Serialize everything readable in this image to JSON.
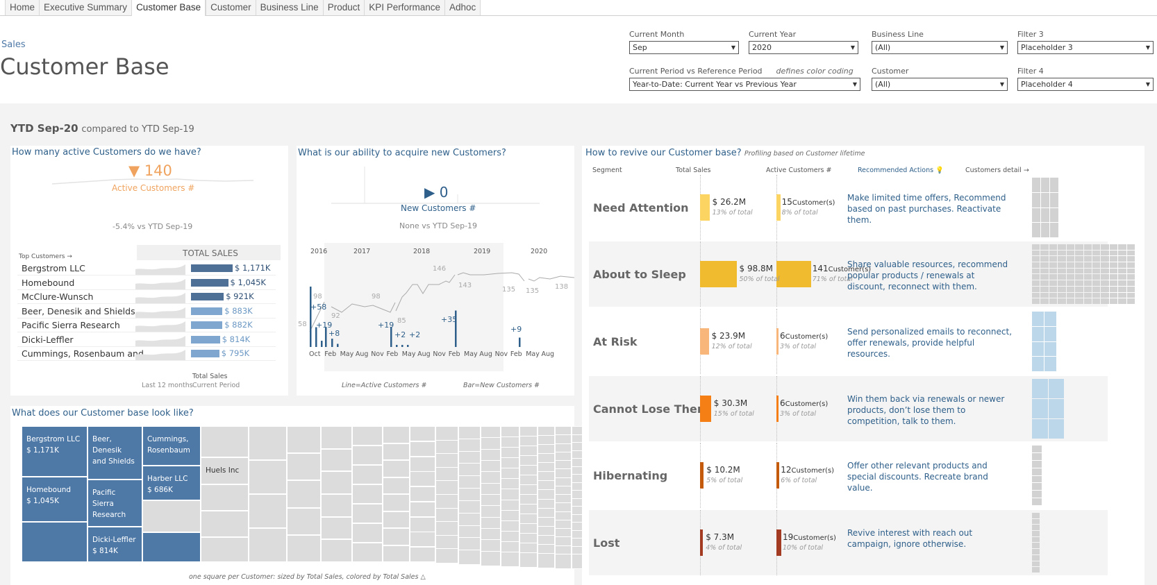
{
  "tabs": [
    "Home",
    "Executive Summary",
    "Customer Base",
    "Customer",
    "Business Line",
    "Product",
    "KPI Performance",
    "Adhoc"
  ],
  "active_tab": "Customer Base",
  "header": {
    "breadcrumb": "Sales",
    "title": "Customer Base"
  },
  "filters": {
    "current_month": {
      "label": "Current Month",
      "value": "Sep"
    },
    "current_year": {
      "label": "Current Year",
      "value": "2020"
    },
    "business_line": {
      "label": "Business Line",
      "value": "(All)"
    },
    "filter3": {
      "label": "Filter 3",
      "value": "Placeholder 3"
    },
    "period": {
      "label": "Current Period vs Reference Period",
      "note": "defines color coding",
      "value": "Year-to-Date: Current Year vs Previous Year"
    },
    "customer": {
      "label": "Customer",
      "value": "(All)"
    },
    "filter4": {
      "label": "Filter 4",
      "value": "Placeholder 4"
    }
  },
  "period": {
    "current": "YTD Sep-20",
    "compared": "compared to YTD Sep-19"
  },
  "active_customers": {
    "title": "How many active Customers do we have?",
    "value": "▼ 140",
    "label": "Active Customers #",
    "change": "-5.4% vs YTD Sep-19",
    "top_label": "Top Customers →",
    "col_header": "TOTAL SALES",
    "footer_total": "Total Sales",
    "footer_period": "Current Period",
    "footer_spark": "Last 12 months",
    "top_customers": [
      {
        "name": "Bergstrom LLC",
        "sales": "$ 1,171K",
        "value": 1171
      },
      {
        "name": "Homebound",
        "sales": "$ 1,045K",
        "value": 1045
      },
      {
        "name": "McClure-Wunsch",
        "sales": "$ 921K",
        "value": 921
      },
      {
        "name": "Beer, Denesik and Shields",
        "sales": "$ 883K",
        "value": 883
      },
      {
        "name": "Pacific Sierra Research",
        "sales": "$ 882K",
        "value": 882
      },
      {
        "name": "Dicki-Leffler",
        "sales": "$ 814K",
        "value": 814
      },
      {
        "name": "Cummings, Rosenbaum and..",
        "sales": "$ 795K",
        "value": 795
      }
    ],
    "colors": {
      "accent": "#f0a35e",
      "bar_dark": "#4e6f96",
      "bar_light": "#7ea6cf"
    }
  },
  "new_customers": {
    "title": "What is our ability to acquire new Customers?",
    "value": "▶ 0",
    "label": "New Customers #",
    "change": "None vs YTD Sep-19",
    "years": [
      "2016",
      "2017",
      "2018",
      "2019",
      "2020"
    ],
    "months": [
      "Oct",
      "Feb",
      "May",
      "Aug",
      "Nov",
      "Feb",
      "May",
      "Aug",
      "Nov",
      "Feb",
      "May",
      "Aug",
      "Nov",
      "Feb",
      "May",
      "Aug"
    ],
    "line_labels": [
      "58",
      "98",
      "92",
      "98",
      "85",
      "146",
      "143",
      "135",
      "135",
      "138"
    ],
    "bar_labels": [
      "+58",
      "+19",
      "+8",
      "+19",
      "+2",
      "+2",
      "+35",
      "+9"
    ],
    "legend_line": "Line=Active Customers #",
    "legend_bar": "Bar=New Customers #"
  },
  "segments_panel": {
    "title": "How to revive our Customer base?",
    "subtitle": "Profiling based on Customer lifetime",
    "headers": {
      "segment": "Segment",
      "sales": "Total Sales",
      "active": "Active Customers #",
      "actions": "Recommended Actions 💡",
      "detail": "Customers detail →"
    },
    "segments": [
      {
        "name": "Need Attention",
        "sales": "$ 26.2M",
        "sales_pct": "13% of total",
        "sales_share": 13,
        "customers": "15",
        "cust_pct": "8% of total",
        "cust_share": 8,
        "unit": "Customer(s)",
        "color": "#fcd462",
        "action": "Make limited time offers, Recommend based on past purchases. Reactivate them."
      },
      {
        "name": "About to Sleep",
        "sales": "$ 98.8M",
        "sales_pct": "50% of total",
        "sales_share": 50,
        "customers": "141",
        "cust_pct": "71% of total",
        "cust_share": 71,
        "unit": "Customer(s)",
        "color": "#f0bb2e",
        "action": "Share valuable resources, recommend popular products / renewals at discount, reconnect with them."
      },
      {
        "name": "At Risk",
        "sales": "$ 23.9M",
        "sales_pct": "12% of total",
        "sales_share": 12,
        "customers": "6",
        "cust_pct": "3% of total",
        "cust_share": 3,
        "unit": "Customer(s)",
        "color": "#f9b67a",
        "action": "Send personalized emails to reconnect, offer renewals, provide helpful resources."
      },
      {
        "name": "Cannot Lose Them",
        "sales": "$ 30.3M",
        "sales_pct": "15% of total",
        "sales_share": 15,
        "customers": "6",
        "cust_pct": "3% of total",
        "cust_share": 3,
        "unit": "Customer(s)",
        "color": "#f57f14",
        "action": "Win them back via renewals or newer products, don’t lose them to competition, talk to them."
      },
      {
        "name": "Hibernating",
        "sales": "$ 10.2M",
        "sales_pct": "5% of total",
        "sales_share": 5,
        "customers": "12",
        "cust_pct": "6% of total",
        "cust_share": 6,
        "unit": "Customer(s)",
        "color": "#c45a0c",
        "action": "Offer other relevant products and special discounts. Recreate brand value."
      },
      {
        "name": "Lost",
        "sales": "$ 7.3M",
        "sales_pct": "4% of total",
        "sales_share": 4,
        "customers": "19",
        "cust_pct": "10% of total",
        "cust_share": 10,
        "unit": "Customer(s)",
        "color": "#a33a22",
        "action": "Revive interest with reach out campaign, ignore otherwise."
      }
    ]
  },
  "treemap": {
    "title": "What does our Customer base look like?",
    "footnote": "one square per Customer: sized by Total Sales, colored by Total Sales △",
    "labeled": [
      {
        "name": "Bergstrom LLC",
        "sales": "$ 1,171K"
      },
      {
        "name": "Homebound",
        "sales": "$ 1,045K"
      },
      {
        "name": "Beer, Denesik and Shields",
        "sales": ""
      },
      {
        "name": "Pacific Sierra Research",
        "sales": ""
      },
      {
        "name": "Dicki-Leffler",
        "sales": "$ 814K"
      },
      {
        "name": "Cummings, Rosenbaum",
        "sales": ""
      },
      {
        "name": "Harber LLC",
        "sales": "$ 686K"
      },
      {
        "name": "Huels Inc",
        "sales": ""
      }
    ]
  }
}
